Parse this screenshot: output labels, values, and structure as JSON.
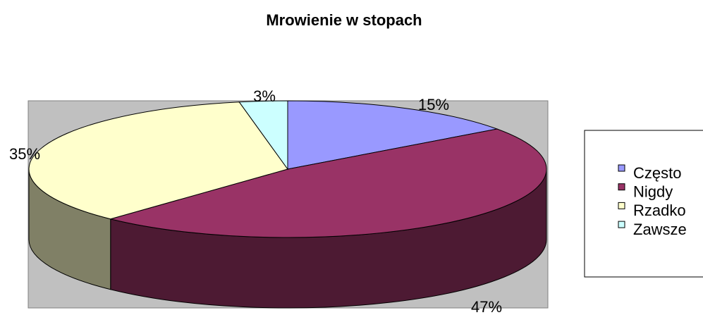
{
  "chart_data": {
    "type": "pie",
    "title": "Mrowienie w stopach",
    "categories": [
      "Często",
      "Nigdy",
      "Rzadko",
      "Zawsze"
    ],
    "values": [
      15,
      47,
      35,
      3
    ],
    "value_labels": [
      "15%",
      "47%",
      "35%",
      "3%"
    ],
    "colors": [
      "#9999ff",
      "#993366",
      "#ffffcc",
      "#ccffff"
    ],
    "legend": "right"
  }
}
